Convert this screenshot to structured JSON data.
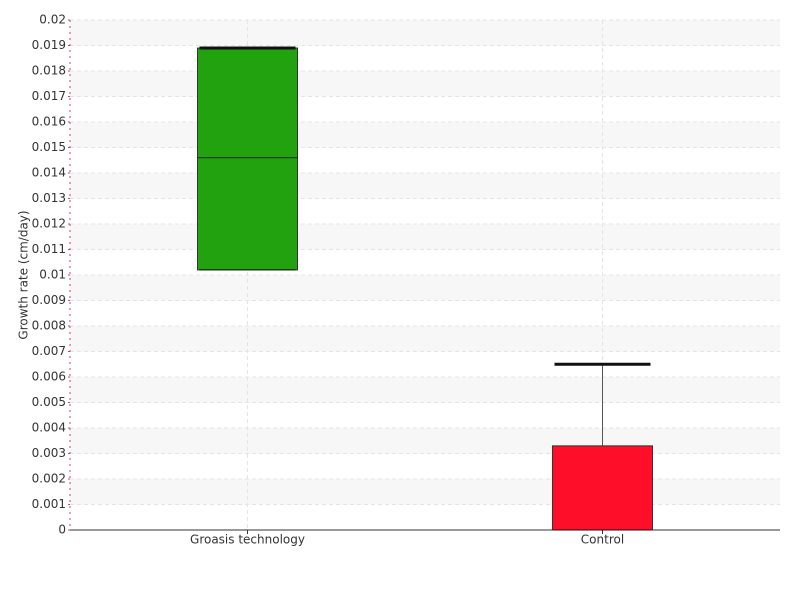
{
  "chart_data": {
    "type": "box",
    "y_label": "Growth rate (cm/day)",
    "categories": [
      "Groasis technology",
      "Control"
    ],
    "colors": [
      "#22a20e",
      "#ff0e2a"
    ],
    "min": [
      0.0102,
      0
    ],
    "q1": [
      0.0102,
      0
    ],
    "median": [
      0.0146,
      0
    ],
    "q3": [
      0.0189,
      0.0033
    ],
    "max": [
      0.0189,
      0.0065
    ],
    "ylim": [
      0,
      0.02
    ],
    "yticks": [
      0,
      0.001,
      0.002,
      0.003,
      0.004,
      0.005,
      0.006,
      0.007,
      0.008,
      0.009,
      0.01,
      0.011,
      0.012,
      0.013,
      0.014,
      0.015,
      0.016,
      0.017,
      0.018,
      0.019,
      0.02
    ],
    "grid": true
  }
}
